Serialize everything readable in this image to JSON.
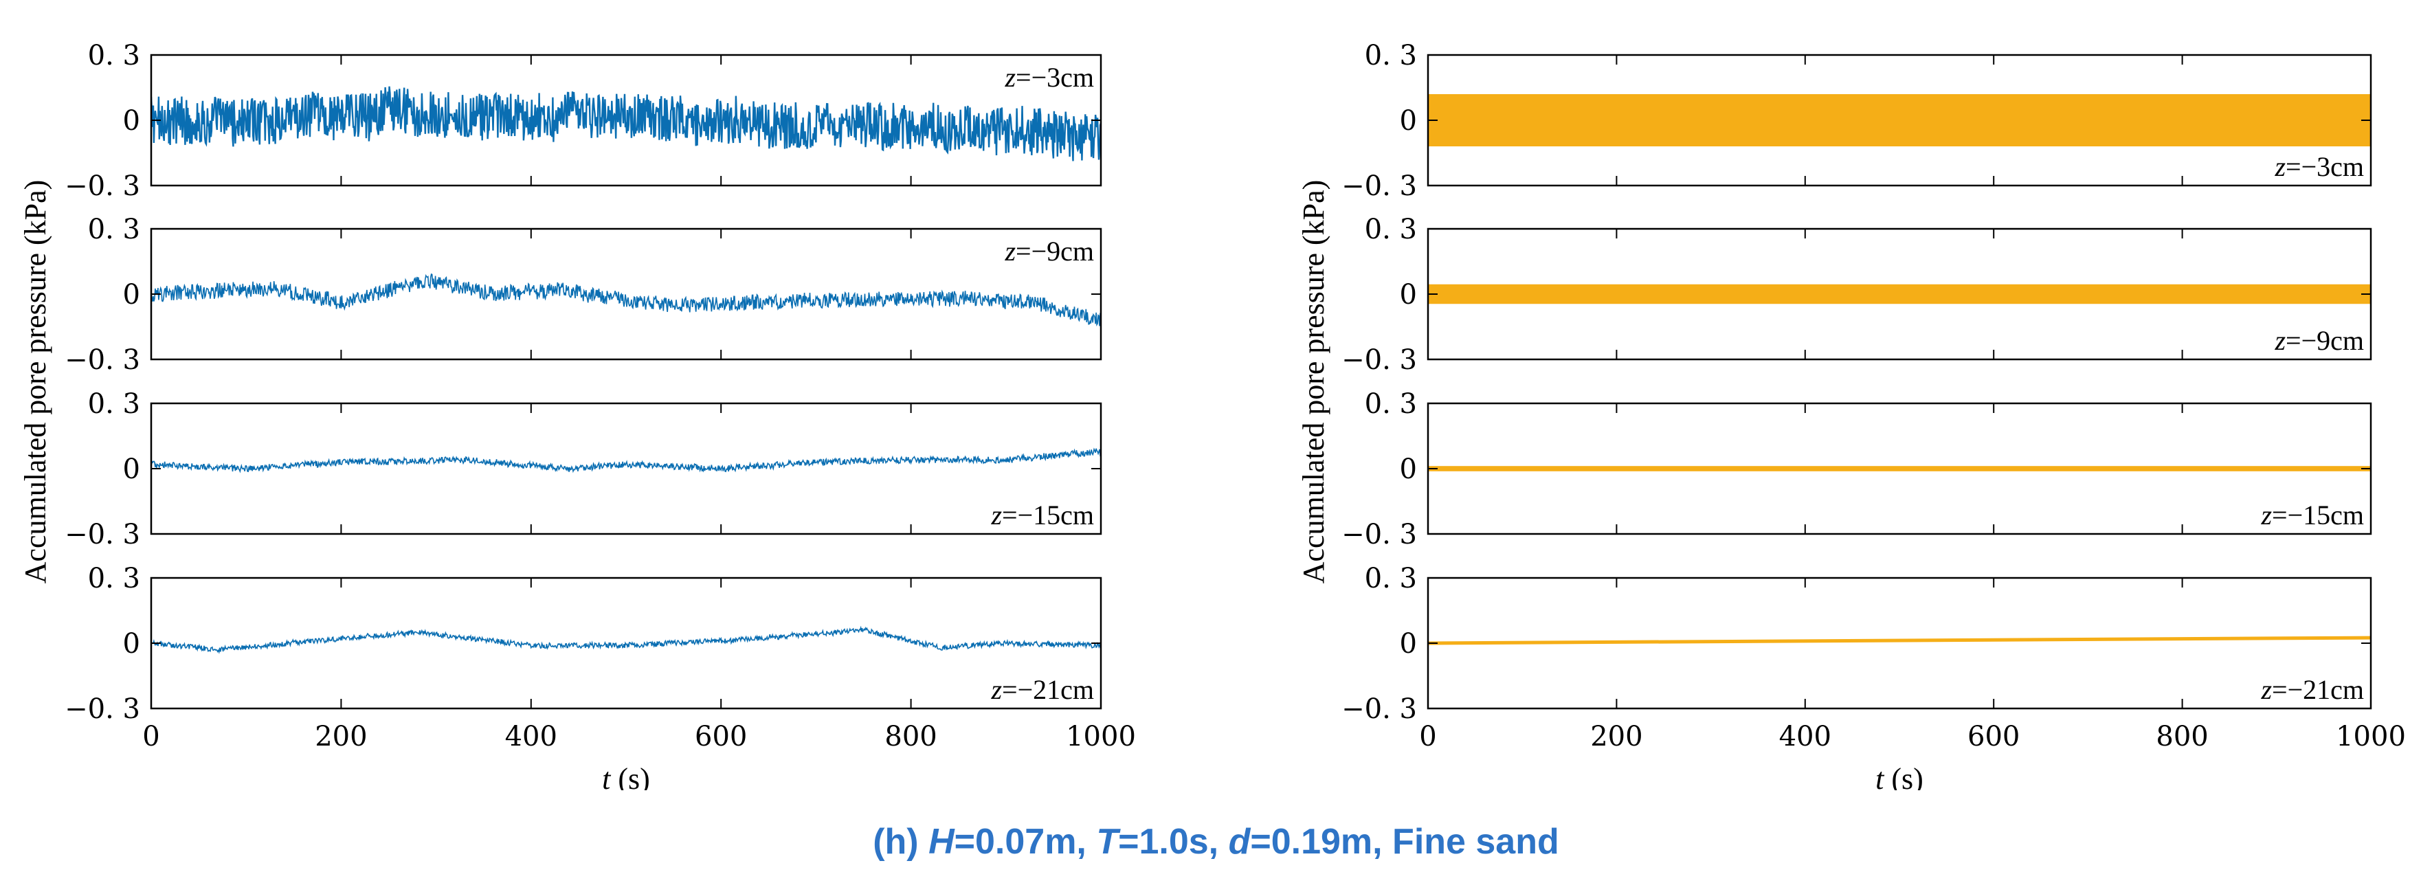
{
  "colors": {
    "measured": "#0a6eb2",
    "numerical": "#f5ae17",
    "caption": "#2e74c6"
  },
  "caption": {
    "prefix": "(h) ",
    "H_var": "H",
    "H_val": "=0.07m, ",
    "T_var": "T",
    "T_val": "=1.0s, ",
    "d_var": "d",
    "d_val": "=0.19m, Fine sand"
  },
  "chart_data": [
    {
      "type": "line",
      "name": "measured",
      "ylabel": "Accumulated pore pressure (kPa)",
      "xlabel_var": "t",
      "xlabel_unit": " (s)",
      "xlim": [
        0,
        1000
      ],
      "ylim": [
        -0.3,
        0.3
      ],
      "xticks": [
        "0",
        "200",
        "400",
        "600",
        "800",
        "1000"
      ],
      "yticks": [
        "0. 3",
        "0",
        "−0. 3"
      ],
      "series": [
        {
          "depth": "z=−3cm",
          "z_var": "z",
          "z_val": "=−3cm",
          "amplitude": 0.11,
          "trend": [
            [
              0,
              0.0
            ],
            [
              100,
              -0.01
            ],
            [
              250,
              0.04
            ],
            [
              350,
              0.01
            ],
            [
              500,
              0.02
            ],
            [
              650,
              -0.02
            ],
            [
              800,
              -0.03
            ],
            [
              900,
              -0.05
            ],
            [
              1000,
              -0.08
            ]
          ]
        },
        {
          "depth": "z=−9cm",
          "z_var": "z",
          "z_val": "=−9cm",
          "amplitude": 0.035,
          "trend": [
            [
              0,
              0.0
            ],
            [
              130,
              0.03
            ],
            [
              200,
              -0.04
            ],
            [
              290,
              0.06
            ],
            [
              360,
              0.0
            ],
            [
              430,
              0.02
            ],
            [
              540,
              -0.05
            ],
            [
              620,
              -0.04
            ],
            [
              780,
              -0.02
            ],
            [
              860,
              -0.02
            ],
            [
              930,
              -0.04
            ],
            [
              1000,
              -0.12
            ]
          ]
        },
        {
          "depth": "z=−15cm",
          "z_var": "z",
          "z_val": "=−15cm",
          "amplitude": 0.015,
          "trend": [
            [
              0,
              0.02
            ],
            [
              100,
              0.0
            ],
            [
              200,
              0.03
            ],
            [
              330,
              0.04
            ],
            [
              440,
              0.0
            ],
            [
              500,
              0.02
            ],
            [
              600,
              0.0
            ],
            [
              700,
              0.03
            ],
            [
              800,
              0.04
            ],
            [
              900,
              0.04
            ],
            [
              1000,
              0.08
            ]
          ]
        },
        {
          "depth": "z=−21cm",
          "z_var": "z",
          "z_val": "=−21cm",
          "amplitude": 0.012,
          "trend": [
            [
              0,
              0.0
            ],
            [
              70,
              -0.03
            ],
            [
              170,
              0.01
            ],
            [
              280,
              0.05
            ],
            [
              400,
              -0.01
            ],
            [
              500,
              -0.01
            ],
            [
              600,
              0.01
            ],
            [
              750,
              0.06
            ],
            [
              830,
              -0.02
            ],
            [
              900,
              0.0
            ],
            [
              1000,
              -0.01
            ]
          ]
        }
      ]
    },
    {
      "type": "line",
      "name": "numerical",
      "ylabel": "Accumulated pore pressure (kPa)",
      "xlabel_var": "t",
      "xlabel_unit": " (s)",
      "xlim": [
        0,
        1000
      ],
      "ylim": [
        -0.3,
        0.3
      ],
      "xticks": [
        "0",
        "200",
        "400",
        "600",
        "800",
        "1000"
      ],
      "yticks": [
        "0. 3",
        "0",
        "−0. 3"
      ],
      "series": [
        {
          "depth": "z=−3cm",
          "z_var": "z",
          "z_val": "=−3cm",
          "band": [
            -0.12,
            0.12
          ]
        },
        {
          "depth": "z=−9cm",
          "z_var": "z",
          "z_val": "=−9cm",
          "band": [
            -0.045,
            0.045
          ]
        },
        {
          "depth": "z=−15cm",
          "z_var": "z",
          "z_val": "=−15cm",
          "band": [
            -0.012,
            0.012
          ]
        },
        {
          "depth": "z=−21cm",
          "z_var": "z",
          "z_val": "=−21cm",
          "line": [
            [
              0,
              0.0
            ],
            [
              1000,
              0.025
            ]
          ]
        }
      ]
    }
  ]
}
